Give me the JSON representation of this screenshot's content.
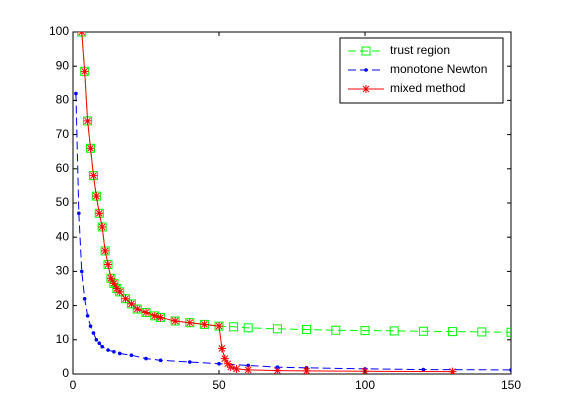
{
  "chart_data": {
    "type": "line",
    "xlim": [
      0,
      150
    ],
    "xticks": [
      0,
      50,
      100,
      150
    ],
    "ylim": [
      0,
      100
    ],
    "yticks": [
      0,
      10,
      20,
      30,
      40,
      50,
      60,
      70,
      80,
      90,
      100
    ],
    "legend": "northeast",
    "series": [
      {
        "name": "trust region",
        "color": "#00ff00",
        "marker": "square",
        "dash": "dashed",
        "x": [
          3,
          4,
          5,
          6,
          7,
          8,
          9,
          10,
          11,
          12,
          13,
          14,
          15,
          16,
          18,
          20,
          22,
          25,
          28,
          30,
          35,
          40,
          45,
          50,
          55,
          60,
          70,
          80,
          90,
          100,
          110,
          120,
          130,
          140,
          150
        ],
        "values": [
          100,
          88.5,
          74,
          66,
          58,
          52,
          47,
          43,
          36,
          32,
          28,
          26.5,
          25,
          24,
          22,
          20.5,
          19,
          18,
          17,
          16.5,
          15.5,
          15,
          14.5,
          14,
          13.8,
          13.5,
          13.2,
          13,
          12.8,
          12.7,
          12.6,
          12.5,
          12.4,
          12.3,
          12.2
        ]
      },
      {
        "name": "monotone Newton",
        "color": "#0000ff",
        "marker": "dot",
        "dash": "dashed",
        "x": [
          1,
          2,
          3,
          4,
          5,
          6,
          7,
          8,
          9,
          10,
          12,
          14,
          16,
          20,
          25,
          30,
          40,
          50,
          60,
          70,
          80,
          100,
          120,
          150
        ],
        "values": [
          82,
          47,
          30,
          22,
          17,
          14,
          12,
          10,
          9,
          8,
          7,
          6.5,
          6,
          5.5,
          4.5,
          4,
          3.5,
          3,
          2.5,
          2,
          1.8,
          1.5,
          1.3,
          1.2
        ]
      },
      {
        "name": "mixed method",
        "color": "#ff0000",
        "marker": "asterisk",
        "dash": "solid",
        "x": [
          3,
          4,
          5,
          6,
          7,
          8,
          9,
          10,
          11,
          12,
          13,
          14,
          15,
          16,
          18,
          20,
          22,
          25,
          28,
          30,
          35,
          40,
          45,
          50,
          51,
          52,
          53,
          54,
          56,
          60,
          70,
          80,
          100,
          130
        ],
        "values": [
          100,
          88.5,
          74,
          66,
          58,
          52,
          47,
          43,
          36,
          32,
          28,
          26.5,
          25,
          24,
          22,
          20.5,
          19,
          18,
          17,
          16.5,
          15.5,
          15,
          14.5,
          14,
          7.5,
          4.5,
          3,
          2,
          1.5,
          1.2,
          1,
          0.9,
          0.8,
          0.7
        ]
      }
    ]
  }
}
